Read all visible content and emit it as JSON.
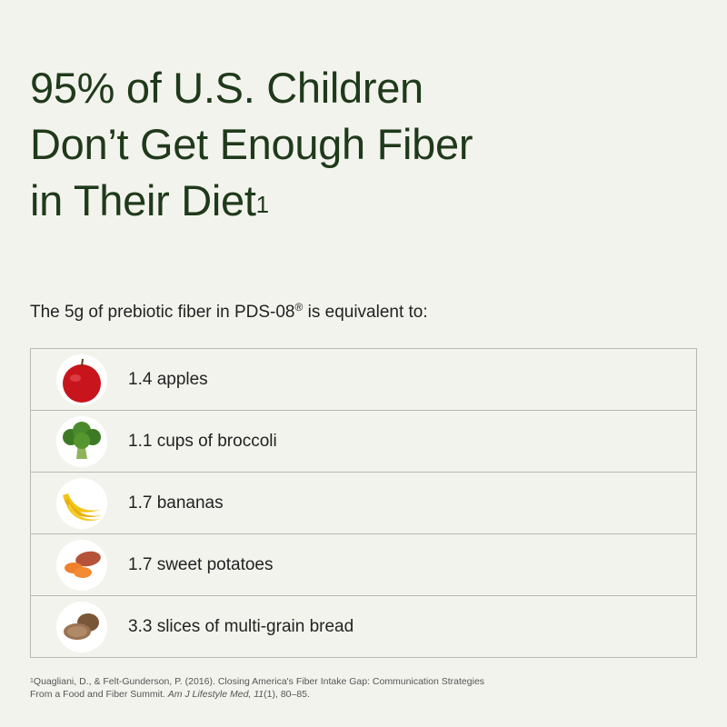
{
  "header": {
    "title_lines": [
      "95% of U.S. Children",
      "Don’t Get Enough Fiber",
      "in Their Diet"
    ],
    "title_footnote_mark": "1",
    "subtitle": "The 5g of prebiotic fiber in PDS-08",
    "subtitle_mark": "®",
    "subtitle_end": " is equivalent to:"
  },
  "table": {
    "rows": [
      "1.4 apples",
      "1.1 cups of broccoli",
      "1.7 bananas",
      "1.7 sweet potatoes",
      "3.3 slices of multi-grain bread"
    ]
  },
  "footnote": {
    "mark": "1",
    "text": "Quagliani, D., & Felt-Gunderson, P. (2016). Closing America's Fiber Intake Gap: Communication Strategies From a Food and Fiber Summit. ",
    "journal": "Am J Lifestyle Med, 11",
    "end": "(1), 80–85."
  }
}
